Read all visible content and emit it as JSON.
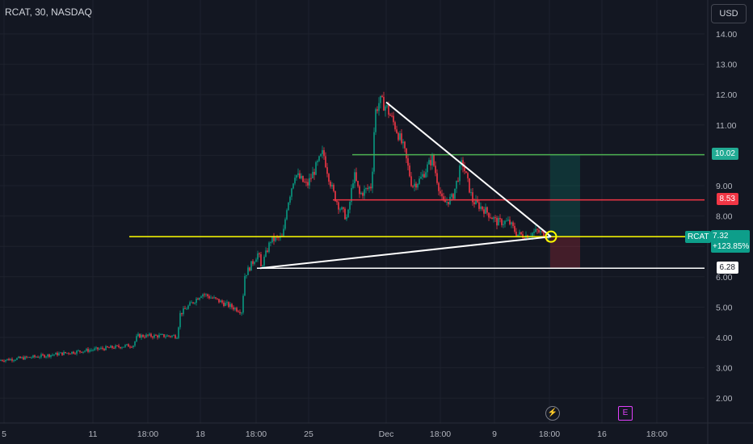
{
  "header": {
    "symbol": "RCAT, 30, NASDAQ",
    "currency": "USD"
  },
  "events": {
    "bolt_icon": "lightning-icon",
    "e_label": "E"
  },
  "chart_data": {
    "type": "candlestick",
    "title": "RCAT, 30, NASDAQ",
    "currency": "USD",
    "y_ticks": [
      "2.00",
      "3.00",
      "4.00",
      "5.00",
      "6.00",
      "7.00",
      "8.00",
      "9.00",
      "10.00",
      "11.00",
      "12.00",
      "13.00",
      "14.00"
    ],
    "ylim": [
      1.6,
      14.6
    ],
    "x_ticks": [
      "5",
      "11",
      "18:00",
      "18",
      "18:00",
      "25",
      "Dec",
      "18:00",
      "9",
      "18:00",
      "16",
      "18:00"
    ],
    "price_path": [
      [
        0,
        3.25
      ],
      [
        40,
        3.35
      ],
      [
        100,
        3.55
      ],
      [
        165,
        3.75
      ],
      [
        170,
        4.05
      ],
      [
        220,
        4.05
      ],
      [
        222,
        4.75
      ],
      [
        250,
        5.45
      ],
      [
        300,
        4.85
      ],
      [
        302,
        6.0
      ],
      [
        320,
        6.8
      ],
      [
        323,
        6.3
      ],
      [
        335,
        7.2
      ],
      [
        350,
        7.3
      ],
      [
        355,
        8.3
      ],
      [
        365,
        9.4
      ],
      [
        380,
        9.0
      ],
      [
        400,
        10.1
      ],
      [
        406,
        9.4
      ],
      [
        412,
        8.8
      ],
      [
        420,
        8.3
      ],
      [
        430,
        7.9
      ],
      [
        438,
        9.4
      ],
      [
        445,
        8.7
      ],
      [
        460,
        9.0
      ],
      [
        464,
        11.4
      ],
      [
        470,
        11.8
      ],
      [
        478,
        11.6
      ],
      [
        490,
        10.9
      ],
      [
        500,
        10.2
      ],
      [
        510,
        9.0
      ],
      [
        520,
        9.2
      ],
      [
        535,
        9.9
      ],
      [
        548,
        8.4
      ],
      [
        560,
        8.6
      ],
      [
        572,
        9.8
      ],
      [
        585,
        8.5
      ],
      [
        600,
        8.2
      ],
      [
        615,
        7.8
      ],
      [
        630,
        7.8
      ],
      [
        640,
        7.4
      ],
      [
        650,
        7.35
      ],
      [
        665,
        7.5
      ],
      [
        680,
        7.32
      ]
    ],
    "last_price": "7.32",
    "change_pct": "+123.85%",
    "ticker_tag": "RCAT",
    "levels": [
      {
        "name": "take-profit",
        "value": "10.02",
        "color": "#4caf50"
      },
      {
        "name": "resistance",
        "value": "8.53",
        "color": "#f23645"
      },
      {
        "name": "support",
        "value": "6.28",
        "color": "#ffffff"
      },
      {
        "name": "current",
        "value": "7.32",
        "color": "#ffff00"
      }
    ],
    "trendlines": [
      {
        "name": "upper-trendline",
        "from": {
          "x_index": 478,
          "price": 11.75
        },
        "to": {
          "x_index": 682,
          "price": 7.32
        }
      },
      {
        "name": "lower-trendline",
        "from": {
          "x_index": 322,
          "price": 6.28
        },
        "to": {
          "x_index": 682,
          "price": 7.32
        }
      }
    ]
  }
}
